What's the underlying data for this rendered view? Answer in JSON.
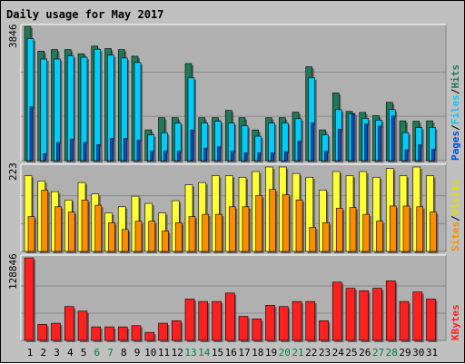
{
  "title": "Daily usage for May 2017",
  "colors": {
    "background": "#c0c0c0",
    "panel": "#b0b0b0",
    "title": "#0000cc",
    "hits": "#1f7a5a",
    "files": "#00ccff",
    "pages": "#0050dd",
    "visits": "#ffff33",
    "sites": "#ff8c00",
    "kbytes": "#ff2020",
    "weekend_day": "#008040",
    "weekday": "#000000"
  },
  "legend": {
    "pages": "Pages",
    "files": "Files",
    "hits": "Hits",
    "sites": "Sites",
    "visits": "Visits",
    "kbytes": "KBytes",
    "sep": "/"
  },
  "chart_data": [
    {
      "type": "bar",
      "panel": "hits-files-pages",
      "max_label": "3846",
      "ylim": [
        0,
        3846
      ],
      "categories": [
        "1",
        "2",
        "3",
        "4",
        "5",
        "6",
        "7",
        "8",
        "9",
        "10",
        "11",
        "12",
        "13",
        "14",
        "15",
        "16",
        "17",
        "18",
        "19",
        "20",
        "21",
        "22",
        "23",
        "24",
        "25",
        "26",
        "27",
        "28",
        "29",
        "30",
        "31"
      ],
      "weekend": [
        "6",
        "7",
        "13",
        "14",
        "20",
        "21",
        "27",
        "28"
      ],
      "series": [
        {
          "name": "Hits",
          "values": [
            3846,
            3135,
            3180,
            3180,
            3060,
            3280,
            3210,
            3180,
            2990,
            882,
            1230,
            1230,
            2780,
            1230,
            1230,
            1440,
            1230,
            880,
            1230,
            1230,
            1390,
            2690,
            880,
            1940,
            1410,
            1380,
            1290,
            1670,
            1140,
            1130,
            1140
          ]
        },
        {
          "name": "Files",
          "values": [
            3490,
            2910,
            2910,
            3000,
            2960,
            3190,
            3020,
            2940,
            2810,
            740,
            800,
            1080,
            2370,
            1080,
            1130,
            1080,
            1000,
            700,
            1080,
            1080,
            1200,
            2370,
            740,
            1460,
            1350,
            1210,
            1160,
            1460,
            800,
            950,
            950
          ]
        },
        {
          "name": "Pages",
          "values": [
            1540,
            200,
            520,
            620,
            520,
            460,
            640,
            640,
            590,
            270,
            270,
            270,
            880,
            360,
            400,
            270,
            220,
            220,
            220,
            260,
            560,
            1080,
            270,
            900,
            1340,
            1050,
            990,
            1280,
            310,
            450,
            330
          ]
        }
      ]
    },
    {
      "type": "bar",
      "panel": "visits-sites",
      "max_label": "223",
      "ylim": [
        0,
        223
      ],
      "categories": [
        "1",
        "2",
        "3",
        "4",
        "5",
        "6",
        "7",
        "8",
        "9",
        "10",
        "11",
        "12",
        "13",
        "14",
        "15",
        "16",
        "17",
        "18",
        "19",
        "20",
        "21",
        "22",
        "23",
        "24",
        "25",
        "26",
        "27",
        "28",
        "29",
        "30",
        "31"
      ],
      "weekend": [
        "6",
        "7",
        "13",
        "14",
        "20",
        "21",
        "27",
        "28"
      ],
      "series": [
        {
          "name": "Visits",
          "values": [
            200,
            186,
            158,
            136,
            182,
            152,
            102,
            118,
            146,
            127,
            102,
            134,
            176,
            182,
            200,
            200,
            196,
            211,
            223,
            223,
            206,
            196,
            162,
            211,
            200,
            211,
            196,
            219,
            200,
            223,
            200
          ]
        },
        {
          "name": "Sites",
          "values": [
            92,
            162,
            118,
            104,
            136,
            122,
            76,
            58,
            80,
            80,
            54,
            76,
            92,
            98,
            98,
            118,
            118,
            148,
            164,
            150,
            136,
            64,
            76,
            114,
            116,
            98,
            80,
            120,
            120,
            118,
            104
          ]
        }
      ]
    },
    {
      "type": "bar",
      "panel": "kbytes",
      "max_label": "128846",
      "ylim": [
        0,
        128846
      ],
      "categories": [
        "1",
        "2",
        "3",
        "4",
        "5",
        "6",
        "7",
        "8",
        "9",
        "10",
        "11",
        "12",
        "13",
        "14",
        "15",
        "16",
        "17",
        "18",
        "19",
        "20",
        "21",
        "22",
        "23",
        "24",
        "25",
        "26",
        "27",
        "28",
        "29",
        "30",
        "31"
      ],
      "weekend": [
        "6",
        "7",
        "13",
        "14",
        "20",
        "21",
        "27",
        "28"
      ],
      "series": [
        {
          "name": "KBytes",
          "values": [
            128846,
            24900,
            26800,
            52800,
            45600,
            21100,
            21100,
            21100,
            23000,
            12500,
            26800,
            30700,
            64600,
            60700,
            60700,
            73900,
            37500,
            33600,
            54800,
            52800,
            60700,
            60700,
            30700,
            90900,
            81300,
            77500,
            81300,
            92900,
            60700,
            75600,
            64600
          ]
        }
      ]
    }
  ]
}
